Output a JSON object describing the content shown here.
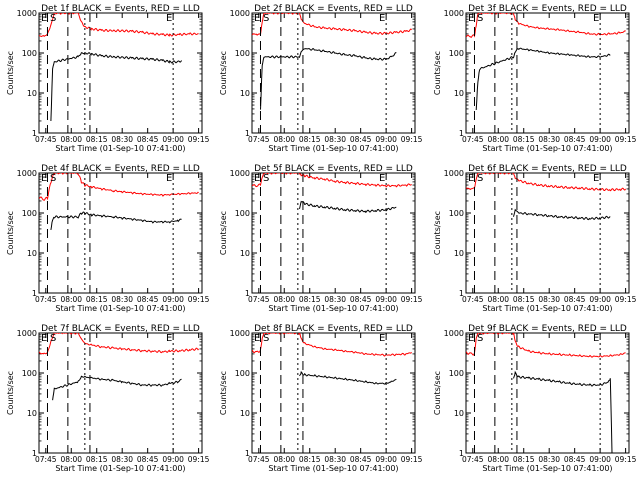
{
  "chart_data": [
    {
      "type": "line",
      "title": "Det 1f BLACK = Events, RED = LLD",
      "xlabel": "Start Time (01-Sep-10 07:41:00)",
      "ylabel": "Counts/sec",
      "yscale": "log",
      "ylim": [
        1,
        1000
      ],
      "x_ticks": [
        "07:45",
        "08:00",
        "08:15",
        "08:30",
        "08:45",
        "09:00",
        "09:15"
      ],
      "y_ticks": [
        "1",
        "10",
        "100",
        "1000"
      ],
      "annotations": [
        "E",
        "S",
        "E"
      ],
      "series": [
        {
          "name": "RED = LLD",
          "color": "#ff0000",
          "x": [
            "07:41",
            "07:44",
            "07:46",
            "07:48",
            "07:50",
            "07:55",
            "08:04",
            "08:06",
            "08:08",
            "08:12",
            "08:18",
            "08:25",
            "08:30",
            "08:36",
            "08:42",
            "08:48",
            "08:54",
            "08:58",
            "09:04",
            "09:10",
            "09:15"
          ],
          "y": [
            270,
            260,
            300,
            500,
            1000,
            1000,
            1000,
            600,
            450,
            400,
            370,
            360,
            360,
            350,
            330,
            300,
            290,
            280,
            290,
            300,
            300
          ]
        },
        {
          "name": "BLACK = Events",
          "color": "#000000",
          "x": [
            "07:48",
            "07:49",
            "07:50",
            "08:04",
            "08:06",
            "08:08",
            "08:12",
            "08:18",
            "08:25",
            "08:30",
            "08:36",
            "08:42",
            "08:48",
            "08:54",
            "08:58",
            "09:03",
            "09:05"
          ],
          "y": [
            2,
            40,
            60,
            80,
            100,
            100,
            95,
            85,
            80,
            78,
            75,
            72,
            70,
            65,
            60,
            60,
            65
          ]
        }
      ]
    },
    {
      "type": "line",
      "title": "Det 2f BLACK = Events, RED = LLD",
      "xlabel": "Start Time (01-Sep-10 07:41:00)",
      "ylabel": "Counts/sec",
      "yscale": "log",
      "ylim": [
        1,
        1000
      ],
      "x_ticks": [
        "07:45",
        "08:00",
        "08:15",
        "08:30",
        "08:45",
        "09:00",
        "09:15"
      ],
      "y_ticks": [
        "1",
        "10",
        "100",
        "1000"
      ],
      "annotations": [
        "E",
        "S",
        "E"
      ],
      "series": [
        {
          "name": "RED = LLD",
          "color": "#ff0000",
          "x": [
            "07:41",
            "07:44",
            "07:46",
            "07:47",
            "07:48",
            "07:49",
            "07:50",
            "08:09",
            "08:10",
            "08:12",
            "08:18",
            "08:24",
            "08:30",
            "08:36",
            "08:42",
            "08:48",
            "08:54",
            "09:00",
            "09:06",
            "09:12",
            "09:15"
          ],
          "y": [
            300,
            290,
            300,
            600,
            1000,
            1000,
            1000,
            1000,
            700,
            550,
            450,
            420,
            400,
            380,
            360,
            330,
            310,
            310,
            330,
            350,
            380
          ]
        },
        {
          "name": "BLACK = Events",
          "color": "#000000",
          "x": [
            "07:46",
            "07:47",
            "07:48",
            "08:09",
            "08:10",
            "08:12",
            "08:18",
            "08:24",
            "08:30",
            "08:36",
            "08:42",
            "08:48",
            "08:54",
            "09:00",
            "09:03",
            "09:06"
          ],
          "y": [
            4,
            50,
            80,
            80,
            110,
            130,
            120,
            110,
            100,
            90,
            85,
            75,
            70,
            70,
            80,
            100
          ]
        }
      ]
    },
    {
      "type": "line",
      "title": "Det 3f BLACK = Events, RED = LLD",
      "xlabel": "Start Time (01-Sep-10 07:41:00)",
      "ylabel": "Counts/sec",
      "yscale": "log",
      "ylim": [
        1,
        1000
      ],
      "x_ticks": [
        "07:45",
        "08:00",
        "08:15",
        "08:30",
        "08:45",
        "09:00",
        "09:15"
      ],
      "y_ticks": [
        "1",
        "10",
        "100",
        "1000"
      ],
      "annotations": [
        "E",
        "S",
        "E"
      ],
      "series": [
        {
          "name": "RED = LLD",
          "color": "#ff0000",
          "x": [
            "07:41",
            "07:44",
            "07:46",
            "07:47",
            "07:48",
            "07:50",
            "08:09",
            "08:10",
            "08:12",
            "08:18",
            "08:24",
            "08:30",
            "08:36",
            "08:42",
            "08:48",
            "08:54",
            "09:00",
            "09:06",
            "09:12",
            "09:15"
          ],
          "y": [
            270,
            260,
            280,
            500,
            1000,
            1000,
            1000,
            700,
            550,
            460,
            420,
            400,
            380,
            350,
            330,
            300,
            290,
            300,
            320,
            350
          ]
        },
        {
          "name": "BLACK = Events",
          "color": "#000000",
          "x": [
            "07:47",
            "07:48",
            "07:49",
            "08:09",
            "08:10",
            "08:12",
            "08:18",
            "08:24",
            "08:30",
            "08:36",
            "08:42",
            "08:48",
            "08:54",
            "09:00",
            "09:06"
          ],
          "y": [
            4,
            20,
            40,
            80,
            110,
            130,
            120,
            110,
            100,
            95,
            90,
            85,
            80,
            80,
            90
          ]
        }
      ]
    },
    {
      "type": "line",
      "title": "Det 4f BLACK = Events, RED = LLD",
      "xlabel": "Start Time (01-Sep-10 07:41:00)",
      "ylabel": "Counts/sec",
      "yscale": "log",
      "ylim": [
        1,
        1000
      ],
      "x_ticks": [
        "07:45",
        "08:00",
        "08:15",
        "08:30",
        "08:45",
        "09:00",
        "09:15"
      ],
      "y_ticks": [
        "1",
        "10",
        "100",
        "1000"
      ],
      "annotations": [
        "E",
        "S",
        "E"
      ],
      "series": [
        {
          "name": "RED = LLD",
          "color": "#ff0000",
          "x": [
            "07:41",
            "07:44",
            "07:46",
            "07:48",
            "07:50",
            "07:55",
            "08:04",
            "08:06",
            "08:08",
            "08:12",
            "08:18",
            "08:25",
            "08:30",
            "08:36",
            "08:42",
            "08:48",
            "08:54",
            "08:58",
            "09:04",
            "09:10",
            "09:15"
          ],
          "y": [
            250,
            220,
            240,
            600,
            1000,
            1000,
            1000,
            600,
            500,
            450,
            400,
            360,
            340,
            320,
            300,
            290,
            280,
            290,
            300,
            310,
            320
          ]
        },
        {
          "name": "BLACK = Events",
          "color": "#000000",
          "x": [
            "07:48",
            "07:49",
            "07:50",
            "08:04",
            "08:06",
            "08:08",
            "08:12",
            "08:18",
            "08:25",
            "08:30",
            "08:36",
            "08:42",
            "08:48",
            "08:54",
            "08:58",
            "09:03",
            "09:05"
          ],
          "y": [
            40,
            70,
            80,
            80,
            100,
            100,
            90,
            85,
            80,
            75,
            70,
            65,
            60,
            60,
            60,
            65,
            70
          ]
        }
      ]
    },
    {
      "type": "line",
      "title": "Det 5f BLACK = Events, RED = LLD",
      "xlabel": "Start Time (01-Sep-10 07:41:00)",
      "ylabel": "Counts/sec",
      "yscale": "log",
      "ylim": [
        1,
        1000
      ],
      "x_ticks": [
        "07:45",
        "08:00",
        "08:15",
        "08:30",
        "08:45",
        "09:00",
        "09:15"
      ],
      "y_ticks": [
        "1",
        "10",
        "100",
        "1000"
      ],
      "annotations": [
        "E",
        "S",
        "E"
      ],
      "series": [
        {
          "name": "RED = LLD",
          "color": "#ff0000",
          "x": [
            "07:41",
            "07:44",
            "07:46",
            "07:47",
            "07:48",
            "07:50",
            "08:09",
            "08:10",
            "08:12",
            "08:18",
            "08:24",
            "08:30",
            "08:36",
            "08:42",
            "08:48",
            "08:54",
            "09:00",
            "09:06",
            "09:12",
            "09:15"
          ],
          "y": [
            500,
            480,
            520,
            800,
            1000,
            1000,
            1000,
            900,
            850,
            750,
            700,
            620,
            580,
            550,
            520,
            500,
            480,
            480,
            500,
            520
          ]
        },
        {
          "name": "BLACK = Events",
          "color": "#000000",
          "x": [
            "08:09",
            "08:10",
            "08:12",
            "08:18",
            "08:24",
            "08:30",
            "08:36",
            "08:42",
            "08:48",
            "08:54",
            "09:00",
            "09:06"
          ],
          "y": [
            130,
            200,
            170,
            150,
            140,
            130,
            120,
            115,
            110,
            115,
            120,
            140
          ]
        }
      ]
    },
    {
      "type": "line",
      "title": "Det 6f BLACK = Events, RED = LLD",
      "xlabel": "Start Time (01-Sep-10 07:41:00)",
      "ylabel": "Counts/sec",
      "yscale": "log",
      "ylim": [
        1,
        1000
      ],
      "x_ticks": [
        "07:45",
        "08:00",
        "08:15",
        "08:30",
        "08:45",
        "09:00",
        "09:15"
      ],
      "y_ticks": [
        "1",
        "10",
        "100",
        "1000"
      ],
      "annotations": [
        "E",
        "S",
        "E"
      ],
      "series": [
        {
          "name": "RED = LLD",
          "color": "#ff0000",
          "x": [
            "07:41",
            "07:44",
            "07:46",
            "07:47",
            "07:48",
            "07:50",
            "08:09",
            "08:10",
            "08:12",
            "08:18",
            "08:24",
            "08:30",
            "08:36",
            "08:42",
            "08:48",
            "08:54",
            "09:00",
            "09:06",
            "09:12",
            "09:15"
          ],
          "y": [
            420,
            400,
            420,
            700,
            1000,
            1000,
            1000,
            750,
            650,
            550,
            500,
            470,
            450,
            430,
            420,
            400,
            390,
            380,
            390,
            400
          ]
        },
        {
          "name": "BLACK = Events",
          "color": "#000000",
          "x": [
            "08:09",
            "08:10",
            "08:12",
            "08:18",
            "08:24",
            "08:30",
            "08:36",
            "08:42",
            "08:48",
            "08:54",
            "09:00",
            "09:06"
          ],
          "y": [
            80,
            120,
            100,
            95,
            90,
            85,
            80,
            78,
            75,
            72,
            75,
            80
          ]
        }
      ]
    },
    {
      "type": "line",
      "title": "Det 7f BLACK = Events, RED = LLD",
      "xlabel": "Start Time (01-Sep-10 07:41:00)",
      "ylabel": "Counts/sec",
      "yscale": "log",
      "ylim": [
        1,
        1000
      ],
      "x_ticks": [
        "07:45",
        "08:00",
        "08:15",
        "08:30",
        "08:45",
        "09:00",
        "09:15"
      ],
      "y_ticks": [
        "1",
        "10",
        "100",
        "1000"
      ],
      "annotations": [
        "E",
        "S",
        "E"
      ],
      "series": [
        {
          "name": "RED = LLD",
          "color": "#ff0000",
          "x": [
            "07:41",
            "07:44",
            "07:46",
            "07:48",
            "07:50",
            "07:55",
            "08:04",
            "08:06",
            "08:08",
            "08:12",
            "08:18",
            "08:25",
            "08:30",
            "08:36",
            "08:42",
            "08:48",
            "08:54",
            "08:58",
            "09:04",
            "09:10",
            "09:15"
          ],
          "y": [
            320,
            300,
            320,
            600,
            1000,
            1000,
            1000,
            700,
            550,
            500,
            450,
            420,
            400,
            380,
            360,
            350,
            340,
            350,
            360,
            380,
            400
          ]
        },
        {
          "name": "BLACK = Events",
          "color": "#000000",
          "x": [
            "07:49",
            "07:50",
            "08:04",
            "08:06",
            "08:08",
            "08:12",
            "08:18",
            "08:25",
            "08:30",
            "08:36",
            "08:42",
            "08:48",
            "08:54",
            "08:58",
            "09:03",
            "09:05"
          ],
          "y": [
            20,
            40,
            60,
            80,
            80,
            75,
            70,
            65,
            60,
            55,
            50,
            50,
            50,
            55,
            60,
            70
          ]
        }
      ]
    },
    {
      "type": "line",
      "title": "Det 8f BLACK = Events, RED = LLD",
      "xlabel": "Start Time (01-Sep-10 07:41:00)",
      "ylabel": "Counts/sec",
      "yscale": "log",
      "ylim": [
        1,
        1000
      ],
      "x_ticks": [
        "07:45",
        "08:00",
        "08:15",
        "08:30",
        "08:45",
        "09:00",
        "09:15"
      ],
      "y_ticks": [
        "1",
        "10",
        "100",
        "1000"
      ],
      "annotations": [
        "E",
        "S",
        "E"
      ],
      "series": [
        {
          "name": "RED = LLD",
          "color": "#ff0000",
          "x": [
            "07:41",
            "07:44",
            "07:46",
            "07:47",
            "07:48",
            "07:50",
            "08:09",
            "08:10",
            "08:12",
            "08:18",
            "08:24",
            "08:30",
            "08:36",
            "08:42",
            "08:48",
            "08:54",
            "09:00",
            "09:06",
            "09:12",
            "09:15"
          ],
          "y": [
            350,
            330,
            360,
            700,
            1000,
            1000,
            1000,
            700,
            550,
            450,
            400,
            380,
            350,
            330,
            300,
            290,
            280,
            290,
            300,
            330
          ]
        },
        {
          "name": "BLACK = Events",
          "color": "#000000",
          "x": [
            "08:09",
            "08:10",
            "08:12",
            "08:18",
            "08:24",
            "08:30",
            "08:36",
            "08:42",
            "08:48",
            "08:54",
            "09:00",
            "09:03",
            "09:06"
          ],
          "y": [
            80,
            100,
            90,
            85,
            80,
            75,
            70,
            65,
            60,
            55,
            55,
            60,
            70
          ]
        }
      ]
    },
    {
      "type": "line",
      "title": "Det 9f BLACK = Events, RED = LLD",
      "xlabel": "Start Time (01-Sep-10 07:41:00)",
      "ylabel": "Counts/sec",
      "yscale": "log",
      "ylim": [
        1,
        1000
      ],
      "x_ticks": [
        "07:45",
        "08:00",
        "08:15",
        "08:30",
        "08:45",
        "09:00",
        "09:15"
      ],
      "y_ticks": [
        "1",
        "10",
        "100",
        "1000"
      ],
      "annotations": [
        "E",
        "S",
        "E"
      ],
      "series": [
        {
          "name": "RED = LLD",
          "color": "#ff0000",
          "x": [
            "07:41",
            "07:44",
            "07:46",
            "07:47",
            "07:48",
            "07:50",
            "08:09",
            "08:10",
            "08:12",
            "08:18",
            "08:24",
            "08:30",
            "08:36",
            "08:42",
            "08:48",
            "08:54",
            "09:00",
            "09:06",
            "09:12",
            "09:15"
          ],
          "y": [
            320,
            300,
            300,
            700,
            1000,
            1000,
            1000,
            600,
            450,
            350,
            320,
            300,
            290,
            280,
            270,
            260,
            260,
            270,
            290,
            320
          ]
        },
        {
          "name": "BLACK = Events",
          "color": "#000000",
          "x": [
            "08:09",
            "08:10",
            "08:12",
            "08:18",
            "08:24",
            "08:30",
            "08:36",
            "08:42",
            "08:48",
            "08:54",
            "09:00",
            "09:05",
            "09:06",
            "09:07"
          ],
          "y": [
            70,
            100,
            80,
            75,
            70,
            65,
            60,
            55,
            52,
            50,
            50,
            60,
            70,
            1
          ]
        }
      ]
    }
  ]
}
